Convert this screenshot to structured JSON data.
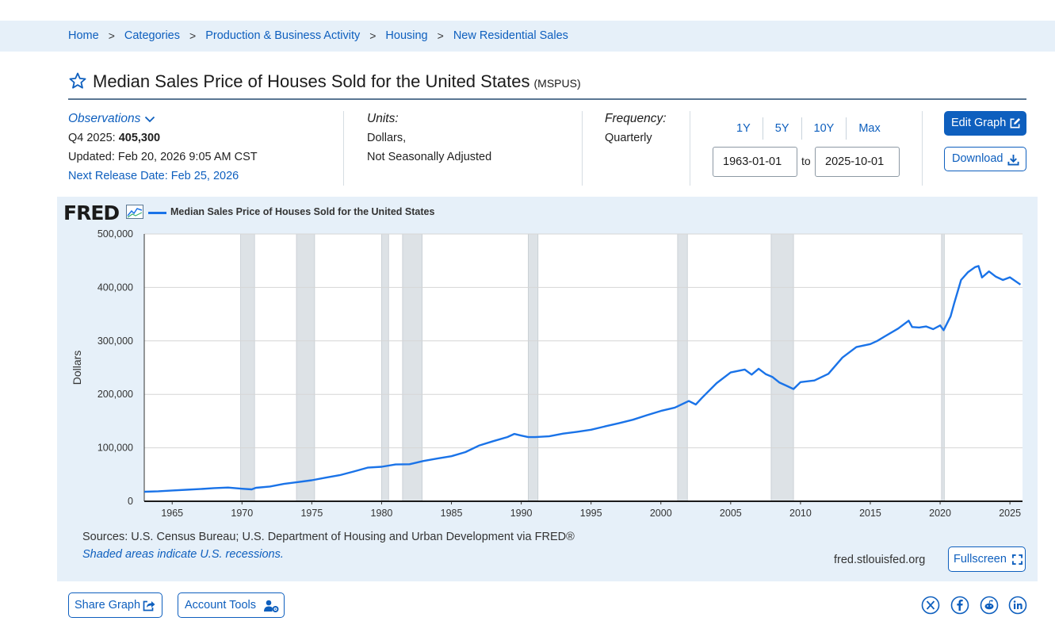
{
  "breadcrumb": [
    "Home",
    "Categories",
    "Production & Business Activity",
    "Housing",
    "New Residential Sales"
  ],
  "breadcrumb_sep": ">",
  "title": "Median Sales Price of Houses Sold for the United States",
  "series_id": "(MSPUS)",
  "observations": {
    "label": "Observations",
    "period": "Q4 2025:",
    "value": "405,300",
    "updated": "Updated: Feb 20, 2026 9:05 AM CST",
    "next_release": "Next Release Date: Feb 25, 2026"
  },
  "units": {
    "label": "Units:",
    "line1": "Dollars,",
    "line2": "Not Seasonally Adjusted"
  },
  "frequency": {
    "label": "Frequency:",
    "value": "Quarterly"
  },
  "range_buttons": [
    "1Y",
    "5Y",
    "10Y",
    "Max"
  ],
  "date_range": {
    "start": "1963-01-01",
    "to": "to",
    "end": "2025-10-01"
  },
  "buttons": {
    "edit_graph": "Edit Graph",
    "download": "Download",
    "fullscreen": "Fullscreen",
    "share_graph": "Share Graph",
    "account_tools": "Account Tools"
  },
  "graph": {
    "logo": "FRED",
    "sources": "Sources: U.S. Census Bureau; U.S. Department of Housing and Urban Development via FRED®",
    "recession_note": "Shaded areas indicate U.S. recessions.",
    "site": "fred.stlouisfed.org"
  },
  "social": [
    "x-icon",
    "facebook-icon",
    "reddit-icon",
    "linkedin-icon"
  ],
  "colors": {
    "accent": "#0e5fbe",
    "series": "#1a73e8",
    "panel": "#e6f0f9",
    "recession": "#dde2e6"
  },
  "chart_data": {
    "type": "line",
    "title": "Median Sales Price of Houses Sold for the United States",
    "xlabel": "",
    "ylabel": "Dollars",
    "xlim": [
      1963,
      2025.9
    ],
    "ylim": [
      0,
      500000
    ],
    "y_ticks": [
      0,
      100000,
      200000,
      300000,
      400000,
      500000
    ],
    "y_tick_labels": [
      "0",
      "100,000",
      "200,000",
      "300,000",
      "400,000",
      "500,000"
    ],
    "x_ticks": [
      1965,
      1970,
      1975,
      1980,
      1985,
      1990,
      1995,
      2000,
      2005,
      2010,
      2015,
      2020,
      2025
    ],
    "grid": true,
    "legend": "top-left",
    "recessions": [
      [
        1969.9,
        1970.9
      ],
      [
        1973.9,
        1975.2
      ],
      [
        1980.0,
        1980.5
      ],
      [
        1981.5,
        1982.9
      ],
      [
        1990.5,
        1991.2
      ],
      [
        2001.2,
        2001.9
      ],
      [
        2007.9,
        2009.5
      ],
      [
        2020.1,
        2020.3
      ]
    ],
    "series": [
      {
        "name": "Median Sales Price of Houses Sold for the United States",
        "x": [
          1963.0,
          1964.0,
          1965.0,
          1966.0,
          1967.0,
          1968.0,
          1969.0,
          1970.0,
          1970.7,
          1971.0,
          1972.0,
          1973.0,
          1974.0,
          1975.0,
          1976.0,
          1977.0,
          1978.0,
          1979.0,
          1980.0,
          1981.0,
          1982.0,
          1983.0,
          1984.0,
          1985.0,
          1986.0,
          1987.0,
          1988.0,
          1989.0,
          1989.5,
          1990.0,
          1990.5,
          1991.0,
          1992.0,
          1993.0,
          1994.0,
          1995.0,
          1996.0,
          1997.0,
          1998.0,
          1999.0,
          2000.0,
          2001.0,
          2002.0,
          2002.5,
          2003.0,
          2004.0,
          2005.0,
          2006.0,
          2006.5,
          2007.0,
          2007.5,
          2008.0,
          2008.5,
          2009.0,
          2009.5,
          2010.0,
          2011.0,
          2012.0,
          2013.0,
          2014.0,
          2015.0,
          2015.5,
          2016.0,
          2017.0,
          2017.75,
          2018.0,
          2018.5,
          2019.0,
          2019.5,
          2020.0,
          2020.25,
          2020.75,
          2021.0,
          2021.5,
          2022.0,
          2022.5,
          2022.75,
          2023.0,
          2023.5,
          2024.0,
          2024.5,
          2025.0,
          2025.75
        ],
        "values": [
          17800,
          18700,
          20200,
          21500,
          22800,
          24700,
          25600,
          23400,
          22200,
          25200,
          27600,
          32500,
          35900,
          39300,
          44200,
          48800,
          55700,
          62900,
          64600,
          68900,
          69300,
          75300,
          80000,
          84300,
          92000,
          104500,
          112500,
          120000,
          126000,
          122900,
          120000,
          120000,
          121500,
          126500,
          130000,
          133900,
          140000,
          146000,
          152500,
          161000,
          169000,
          175200,
          187600,
          181000,
          195000,
          221000,
          240900,
          246500,
          237000,
          247900,
          238000,
          232400,
          222000,
          216000,
          210000,
          222900,
          226000,
          238400,
          268900,
          288500,
          294000,
          300000,
          307800,
          323100,
          337900,
          326000,
          325000,
          327000,
          322000,
          329000,
          320000,
          346000,
          369800,
          414000,
          428700,
          438000,
          440000,
          418500,
          430000,
          420000,
          414000,
          419000,
          405300
        ]
      }
    ]
  }
}
